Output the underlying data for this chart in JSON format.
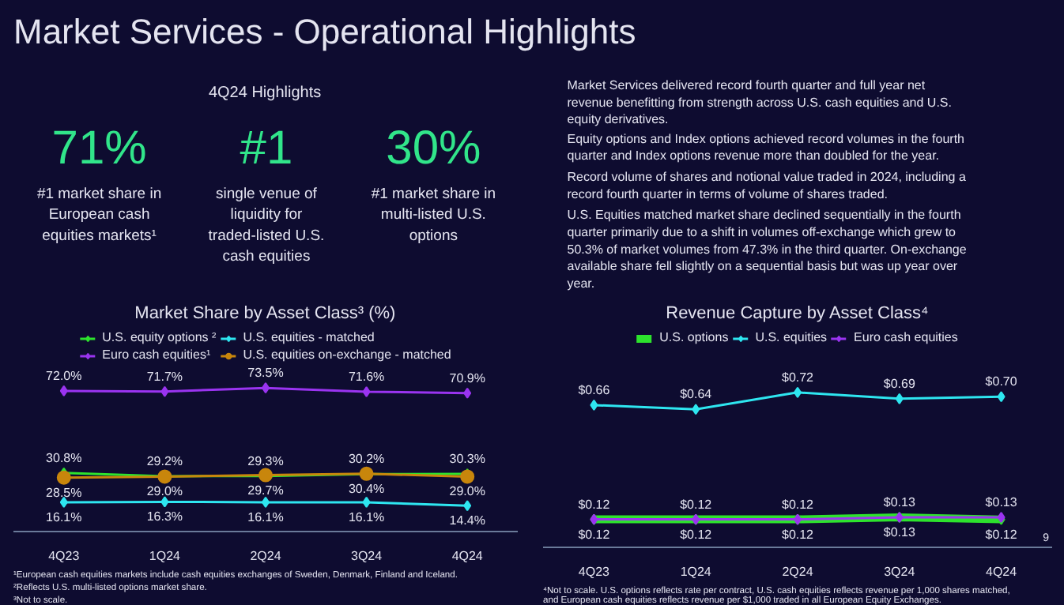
{
  "chart_data": [
    {
      "type": "other",
      "title": "Market Services - Operational Highlights",
      "subtitle": "4Q24 Highlights",
      "annotations": [
        "71%",
        "#1",
        "30%",
        "#1 market share in European cash equities markets¹",
        "single venue of liquidity for traded-listed U.S. cash equities",
        "#1 market share in multi-listed U.S. options",
        "Market Services delivered record fourth quarter and full year net revenue benefitting from strength across U.S. cash equities and U.S. equity derivatives.",
        "Equity options and Index options achieved record volumes in the fourth quarter and Index options revenue more than doubled for the year.",
        "Record volume of shares and notional value traded in 2024, including a record fourth quarter in terms of volume of shares traded.",
        "U.S. Equities matched market share declined sequentially in the fourth quarter primarily due to a shift in volumes off-exchange which grew to 50.3% of market volumes from 47.3% in the third quarter. On-exchange available share fell slightly on a sequential basis but was up year over year."
      ]
    },
    {
      "type": "line",
      "title": "Market Share by Asset Class³ (%)",
      "categories": [
        "4Q23",
        "1Q24",
        "2Q24",
        "3Q24",
        "4Q24"
      ],
      "legend": "top",
      "marker": "diamond",
      "grid": false,
      "series": [
        {
          "name": "U.S. equity options ²",
          "color": "#2de32d",
          "values": [
            30.8,
            29.2,
            29.3,
            30.2,
            30.3
          ],
          "value_labels": [
            "30.8%",
            "29.2%",
            "29.3%",
            "30.2%",
            "30.3%"
          ]
        },
        {
          "name": "U.S. equities - matched",
          "color": "#2ee6f0",
          "values": [
            16.1,
            16.3,
            16.1,
            16.1,
            14.4
          ],
          "value_labels": [
            "16.1%",
            "16.3%",
            "16.1%",
            "16.1%",
            "14.4%"
          ]
        },
        {
          "name": "Euro cash equities¹",
          "color": "#9a34f0",
          "values": [
            72.0,
            71.7,
            73.5,
            71.6,
            70.9
          ],
          "value_labels": [
            "72.0%",
            "71.7%",
            "73.5%",
            "71.6%",
            "70.9%"
          ]
        },
        {
          "name": "U.S. equities on-exchange - matched",
          "color": "#c8860c",
          "marker": "circle",
          "values": [
            28.5,
            29.0,
            29.7,
            30.4,
            29.0
          ],
          "value_labels": [
            "28.5%",
            "29.0%",
            "29.7%",
            "30.4%",
            "29.0%"
          ]
        }
      ],
      "annotations": [
        "¹European cash equities markets include cash equities exchanges of Sweden, Denmark, Finland and Iceland.",
        "²Reflects U.S. multi-listed options market share.",
        "³Not to scale."
      ]
    },
    {
      "type": "line",
      "title": "Revenue Capture by Asset Class⁴",
      "categories": [
        "4Q23",
        "1Q24",
        "2Q24",
        "3Q24",
        "4Q24"
      ],
      "legend": "top",
      "marker": "diamond",
      "grid": false,
      "series": [
        {
          "name": "U.S. options",
          "color": "#2de32d",
          "values": [
            0.12,
            0.12,
            0.12,
            0.13,
            0.12
          ],
          "value_labels": [
            "$0.12",
            "$0.12",
            "$0.12",
            "$0.13",
            "$0.12"
          ]
        },
        {
          "name": "U.S. equities",
          "color": "#2ee6f0",
          "values": [
            0.66,
            0.64,
            0.72,
            0.69,
            0.7
          ],
          "value_labels": [
            "$0.66",
            "$0.64",
            "$0.72",
            "$0.69",
            "$0.70"
          ]
        },
        {
          "name": "Euro cash equities",
          "color": "#9a34f0",
          "values": [
            0.12,
            0.12,
            0.12,
            0.13,
            0.13
          ],
          "value_labels": [
            "$0.12",
            "$0.12",
            "$0.12",
            "$0.13",
            "$0.13"
          ]
        }
      ],
      "annotations": [
        "⁴Not to scale. U.S. options reflects rate per contract, U.S. cash equities reflects revenue per 1,000 shares matched, and European cash equities reflects revenue per $1,000 traded in all European Equity Exchanges.",
        "9"
      ]
    }
  ]
}
